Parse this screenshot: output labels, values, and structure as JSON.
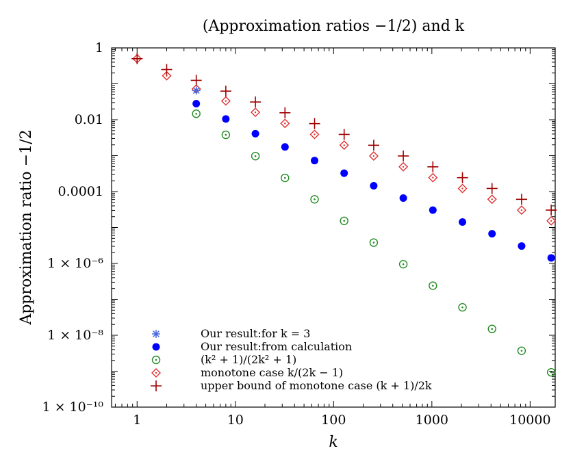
{
  "chart_data": {
    "type": "scatter",
    "title": "(Approximation ratios −1/2) and k",
    "xlabel": "k",
    "ylabel": "Approximation ratio −1/2",
    "xscale": "log",
    "yscale": "log",
    "xlim": [
      0.55,
      18000
    ],
    "ylim": [
      1e-10,
      1
    ],
    "x_ticks": [
      {
        "value": 1,
        "label": "1"
      },
      {
        "value": 10,
        "label": "10"
      },
      {
        "value": 100,
        "label": "100"
      },
      {
        "value": 1000,
        "label": "1000"
      },
      {
        "value": 10000,
        "label": "10000"
      }
    ],
    "y_ticks": [
      {
        "value": 1,
        "label": "1"
      },
      {
        "value": 0.01,
        "label": "0.01"
      },
      {
        "value": 0.0001,
        "label": "0.0001"
      },
      {
        "value": 1e-06,
        "label": "1 × 10⁻⁶"
      },
      {
        "value": 1e-08,
        "label": "1 × 10⁻⁸"
      },
      {
        "value": 1e-10,
        "label": "1 × 10⁻¹⁰"
      }
    ],
    "legend_position": "bottom-left",
    "series": [
      {
        "name": "Our result:for k = 3",
        "marker": "asterisk",
        "color": "#4466dd",
        "x": [
          4
        ],
        "y": [
          0.065
        ]
      },
      {
        "name": "Our result:from calculation",
        "marker": "filled-circle",
        "color": "#0000ff",
        "x": [
          4,
          8,
          16,
          32,
          64,
          128,
          256,
          512,
          1024,
          2048,
          4096,
          8192,
          16384
        ],
        "y": [
          0.028,
          0.0105,
          0.0041,
          0.00175,
          0.00073,
          0.000325,
          0.000145,
          6.6e-05,
          3.05e-05,
          1.42e-05,
          6.7e-06,
          3.05e-06,
          1.42e-06
        ]
      },
      {
        "name": "(k² + 1)/(2k² + 1)",
        "marker": "open-circle-dot",
        "color": "#228b22",
        "x": [
          4,
          8,
          16,
          32,
          64,
          128,
          256,
          512,
          1024,
          2048,
          4096,
          8192,
          16384
        ],
        "y": [
          0.0147,
          0.0038,
          0.00097,
          0.00024,
          6.1e-05,
          1.53e-05,
          3.8e-06,
          9.5e-07,
          2.4e-07,
          6e-08,
          1.5e-08,
          3.7e-09,
          9.3e-10
        ]
      },
      {
        "name": "monotone case k/(2k − 1)",
        "marker": "open-diamond-dot",
        "color": "#e03030",
        "x": [
          1,
          2,
          4,
          8,
          16,
          32,
          64,
          128,
          256,
          512,
          1024,
          2048,
          4096,
          8192,
          16384
        ],
        "y": [
          0.5,
          0.167,
          0.0714,
          0.0333,
          0.0161,
          0.0079,
          0.0039,
          0.00196,
          0.00098,
          0.00049,
          0.000244,
          0.000122,
          6.1e-05,
          3.05e-05,
          1.53e-05
        ]
      },
      {
        "name": "upper bound of monotone case (k + 1)/2k",
        "marker": "plus",
        "color": "#a00000",
        "x": [
          1,
          2,
          4,
          8,
          16,
          32,
          64,
          128,
          256,
          512,
          1024,
          2048,
          4096,
          8192,
          16384
        ],
        "y": [
          0.5,
          0.25,
          0.125,
          0.0625,
          0.03125,
          0.0156,
          0.0078,
          0.0039,
          0.00195,
          0.00098,
          0.00049,
          0.000244,
          0.000122,
          6.1e-05,
          3.05e-05
        ]
      }
    ]
  }
}
